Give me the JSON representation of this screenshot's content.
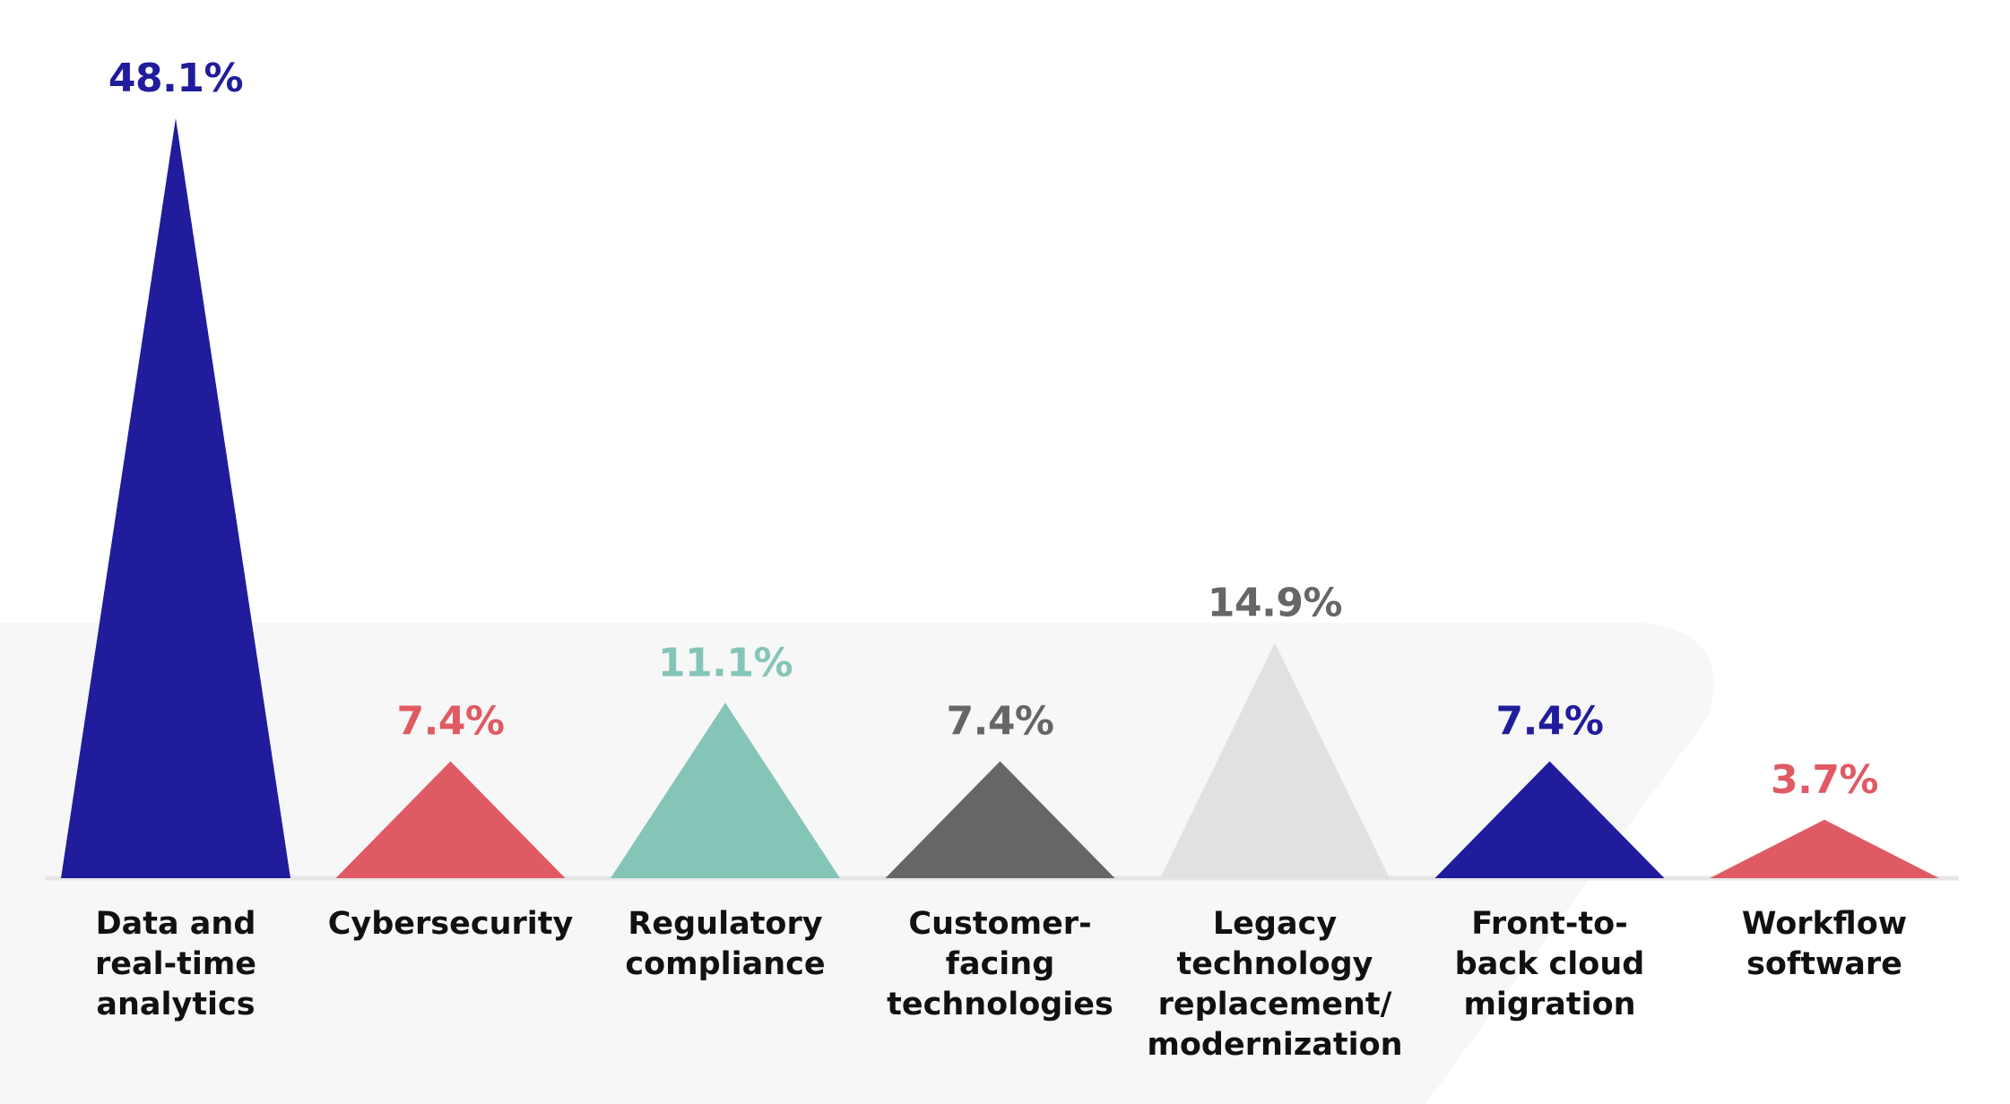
{
  "chart_data": {
    "type": "bar",
    "bar_shape": "triangle",
    "categories": [
      [
        "Data and",
        "real-time",
        "analytics"
      ],
      [
        "Cybersecurity"
      ],
      [
        "Regulatory",
        "compliance"
      ],
      [
        "Customer-",
        "facing",
        "technologies"
      ],
      [
        "Legacy",
        "technology",
        "replacement/",
        "modernization"
      ],
      [
        "Front-to-",
        "back cloud",
        "migration"
      ],
      [
        "Workflow",
        "software"
      ]
    ],
    "values": [
      48.1,
      7.4,
      11.1,
      7.4,
      14.9,
      7.4,
      3.7
    ],
    "data_labels": [
      "48.1%",
      "7.4%",
      "11.1%",
      "7.4%",
      "14.9%",
      "7.4%",
      "3.7%"
    ],
    "colors": [
      "#201c9b",
      "#e05a63",
      "#85c5b8",
      "#666666",
      "#e1e1e1",
      "#201c9b",
      "#e05a63"
    ],
    "label_colors": [
      "#201c9b",
      "#e05a63",
      "#85c5b8",
      "#666666",
      "#666666",
      "#201c9b",
      "#e05a63"
    ],
    "background_panel_color": "#f7f7f7",
    "baseline_color": "#e6e6e6",
    "ylim": [
      0,
      48.1
    ],
    "grid": false,
    "legend": "none"
  }
}
